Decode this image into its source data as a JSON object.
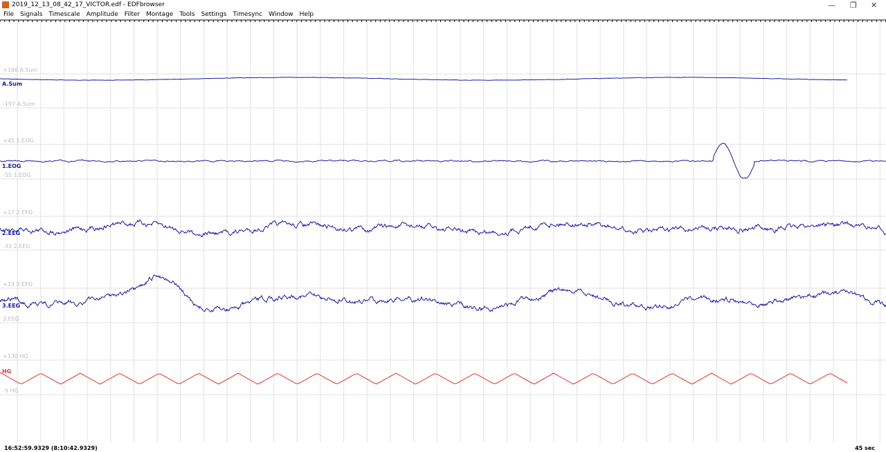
{
  "window": {
    "title": "2019_12_13_08_42_17_VICTOR.edf - EDFbrowser"
  },
  "menu": [
    "File",
    "Signals",
    "Timescale",
    "Amplitude",
    "Filter",
    "Montage",
    "Tools",
    "Settings",
    "Timesync",
    "Window",
    "Help"
  ],
  "signals": [
    {
      "label": "A.Sum",
      "upper": "+186 A.Sum",
      "lower": "-197 A.Sum",
      "color": "#1a1aa8"
    },
    {
      "label": "1.EOG",
      "upper": "+45 1.EOG",
      "lower": "-55 1.EOG",
      "color": "#1a1aa8"
    },
    {
      "label": "2.EEG",
      "upper": "+17 2.EEG",
      "lower": "-33 2.EEG",
      "color": "#1a1aa8"
    },
    {
      "label": "3.EEG",
      "upper": "+13 3.EEG",
      "lower": "3.EEG",
      "color": "#1a1aa8"
    },
    {
      "label": "HG",
      "upper": "+130 HG",
      "lower": "-9 HG",
      "color": "#e03030"
    }
  ],
  "status": {
    "time": "16:52:59.9329 (8:10:42.9329)",
    "span": "45 sec"
  }
}
